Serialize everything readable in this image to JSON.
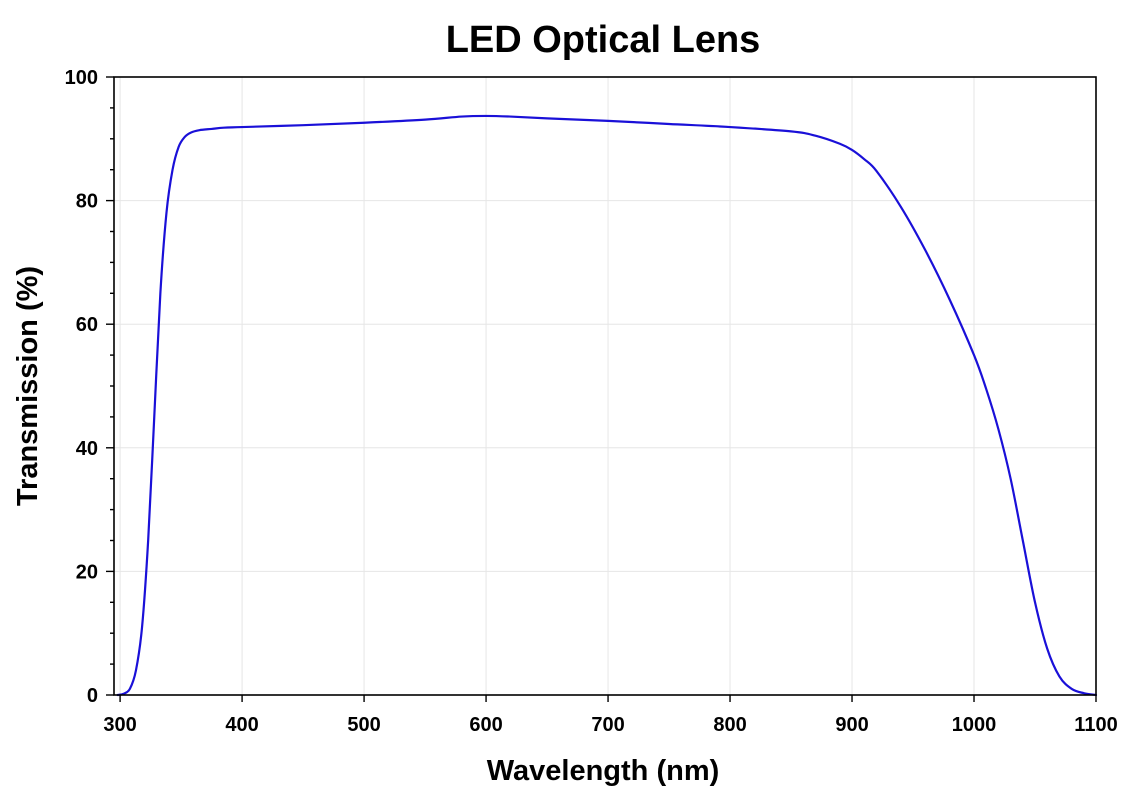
{
  "chart_data": {
    "type": "line",
    "title": "LED Optical Lens",
    "xlabel": "Wavelength (nm)",
    "ylabel": "Transmission (%)",
    "xlim": [
      295,
      1100
    ],
    "ylim": [
      0,
      100
    ],
    "x_ticks": [
      300,
      400,
      500,
      600,
      700,
      800,
      900,
      1000,
      1100
    ],
    "y_ticks": [
      0,
      20,
      40,
      60,
      80,
      100
    ],
    "y_minor_step": 5,
    "grid": true,
    "line_color": "#1a10d8",
    "series": [
      {
        "x": [
          298,
          303,
          308,
          313,
          318,
          323,
          328,
          333,
          338,
          343,
          348,
          353,
          358,
          365,
          375,
          385,
          400,
          450,
          500,
          550,
          580,
          600,
          620,
          650,
          700,
          750,
          800,
          850,
          870,
          890,
          900,
          910,
          920,
          940,
          960,
          980,
          1000,
          1010,
          1020,
          1030,
          1040,
          1050,
          1060,
          1070,
          1080,
          1090,
          1100
        ],
        "y": [
          0,
          0.2,
          1,
          4,
          11,
          25,
          45,
          65,
          78,
          85,
          88.7,
          90.3,
          91,
          91.4,
          91.6,
          91.8,
          91.9,
          92.2,
          92.6,
          93.1,
          93.6,
          93.7,
          93.6,
          93.3,
          92.9,
          92.4,
          91.9,
          91.2,
          90.5,
          89.2,
          88.2,
          86.7,
          84.8,
          79,
          72,
          64,
          55,
          49.5,
          43,
          35,
          25,
          15,
          7.5,
          3,
          1,
          0.3,
          0
        ]
      }
    ]
  }
}
